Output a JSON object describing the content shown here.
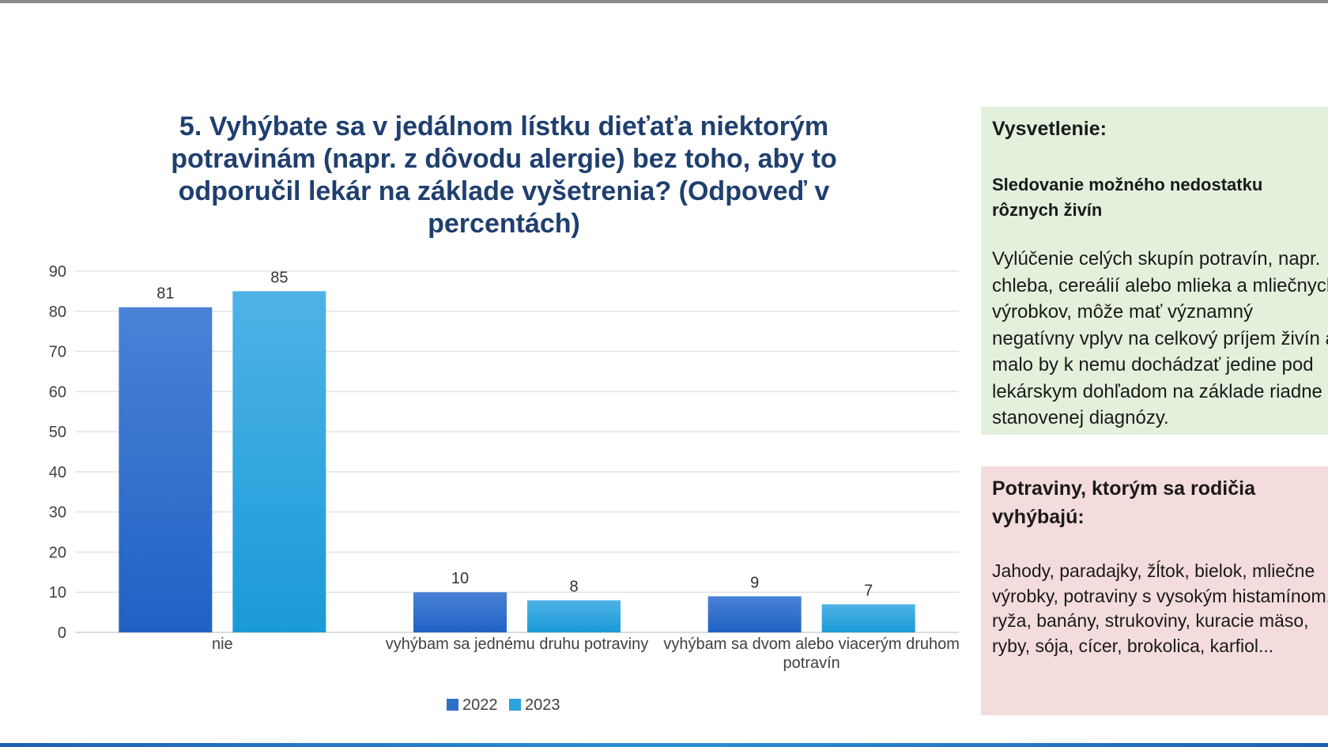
{
  "chart_data": {
    "type": "bar",
    "title": "5. Vyhýbate sa v jedálnom lístku dieťaťa niektorým potravinám (napr. z dôvodu alergie) bez toho, aby to odporučil lekár na základe vyšetrenia? (Odpoveď v percentách)",
    "categories": [
      "nie",
      "vyhýbam sa jednému druhu potraviny",
      "vyhýbam sa dvom alebo viacerým druhom potravín"
    ],
    "series": [
      {
        "name": "2022",
        "values": [
          81,
          10,
          9
        ],
        "color": "#2f6fc9"
      },
      {
        "name": "2023",
        "values": [
          85,
          8,
          7
        ],
        "color": "#2aa3de"
      }
    ],
    "ylim": [
      0,
      90
    ],
    "yticks": [
      0,
      10,
      20,
      30,
      40,
      50,
      60,
      70,
      80,
      90
    ],
    "grid": true,
    "legend": "bottom-center",
    "xlabel": "",
    "ylabel": ""
  },
  "explanation": {
    "heading": "Vysvetlenie:",
    "subheading": "Sledovanie možného nedostatku rôznych živín",
    "body": "Vylúčenie celých skupín potravín, napr. chleba, cereálií alebo mlieka a mliečnych výrobkov, môže mať významný negatívny vplyv na celkový príjem živín a malo by k nemu dochádzať jedine pod lekárskym dohľadom na základe riadne stanovenej diagnózy."
  },
  "avoided_foods": {
    "heading": "Potraviny, ktorým sa rodičia vyhýbajú:",
    "body": "Jahody, paradajky, žĺtok, bielok, mliečne výrobky, potraviny s vysokým histamínom, ryža, banány, strukoviny, kuracie mäso, ryby, sója, cícer, brokolica, karfiol..."
  },
  "colors": {
    "title": "#1f3f6e",
    "axis_text": "#404040",
    "grid": "#e3e3e3",
    "green_panel": "#e3f1dc",
    "red_panel": "#f4dcdc"
  }
}
